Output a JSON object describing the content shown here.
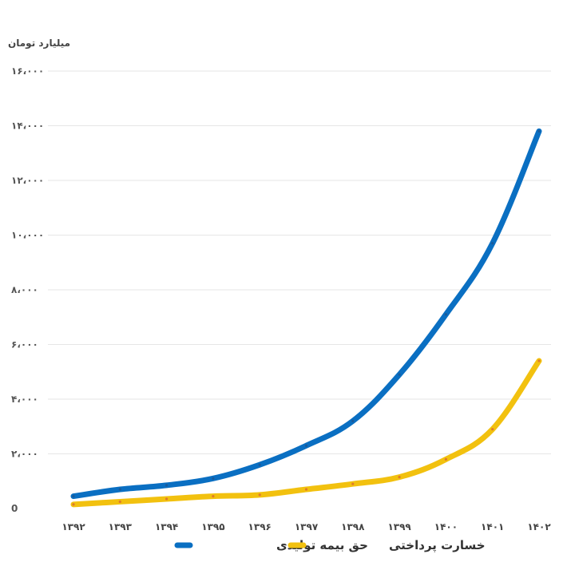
{
  "chart_data": {
    "type": "line",
    "title": "",
    "ylabel": "میلیارد تومان",
    "xlabel": "",
    "categories": [
      "۱۳۹۲",
      "۱۳۹۳",
      "۱۳۹۴",
      "۱۳۹۵",
      "۱۳۹۶",
      "۱۳۹۷",
      "۱۳۹۸",
      "۱۳۹۹",
      "۱۴۰۰",
      "۱۴۰۱",
      "۱۴۰۲"
    ],
    "y_ticks": [
      "0",
      "۲،۰۰۰",
      "۴،۰۰۰",
      "۶،۰۰۰",
      "۸،۰۰۰",
      "۱۰،۰۰۰",
      "۱۲،۰۰۰",
      "۱۴،۰۰۰",
      "۱۶،۰۰۰"
    ],
    "ylim": [
      0,
      16000
    ],
    "grid": true,
    "legend_position": "bottom",
    "series": [
      {
        "name": "حق بیمه تولیدی",
        "color": "#0a6fc2",
        "values": [
          450,
          700,
          850,
          1100,
          1600,
          2300,
          3200,
          4900,
          7100,
          9700,
          13800
        ]
      },
      {
        "name": "خسارت پرداختی",
        "color": "#f2c10f",
        "values": [
          150,
          250,
          350,
          450,
          500,
          700,
          900,
          1150,
          1800,
          2900,
          5400
        ]
      }
    ]
  }
}
